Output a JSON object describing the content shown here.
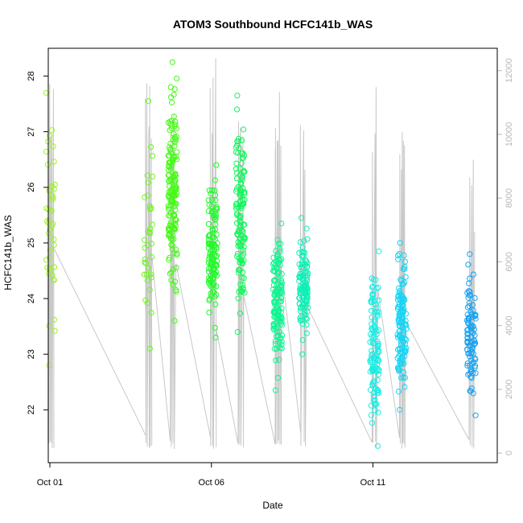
{
  "chart_data": {
    "type": "scatter",
    "title": "ATOM3 Southbound HCFC141b_WAS",
    "xlabel": "Date",
    "ylabel": "HCFC141b_WAS",
    "x_ticks": [
      "Oct 01",
      "Oct 06",
      "Oct 11"
    ],
    "x_tick_days": [
      1,
      6,
      11
    ],
    "xlim_days": [
      0.95,
      14.85
    ],
    "ylim": [
      21.05,
      28.5
    ],
    "y_ticks": [
      22,
      23,
      24,
      25,
      26,
      27,
      28
    ],
    "y2_ticks": [
      0,
      2000,
      4000,
      6000,
      8000,
      10000,
      12000
    ],
    "y2lim": [
      -300,
      12700
    ],
    "y2_series": "altitude (gray line)",
    "grid": false,
    "legend": "none",
    "colors": {
      "altitude_line": "#c8c8c8",
      "box": "#000000",
      "right_axis": "#b8b8b8"
    },
    "flights": [
      {
        "day": 1.02,
        "color": "#9cf02b",
        "range": [
          22.8,
          27.7
        ],
        "n": 45,
        "alt_max": 12000
      },
      {
        "day": 4.05,
        "color": "#6ff51f",
        "range": [
          23.1,
          27.55
        ],
        "n": 35,
        "alt_max": 12300
      },
      {
        "day": 4.8,
        "color": "#45fa15",
        "range": [
          23.6,
          28.25
        ],
        "n": 160,
        "alt_max": 12100
      },
      {
        "day": 6.05,
        "color": "#1ffa28",
        "range": [
          23.3,
          26.4
        ],
        "n": 120,
        "alt_max": 12400
      },
      {
        "day": 6.9,
        "color": "#10f75a",
        "range": [
          23.4,
          27.65
        ],
        "n": 130,
        "alt_max": 11600
      },
      {
        "day": 8.05,
        "color": "#0ef590",
        "range": [
          22.35,
          25.35
        ],
        "n": 130,
        "alt_max": 11800
      },
      {
        "day": 8.85,
        "color": "#10f0b5",
        "range": [
          23.0,
          25.45
        ],
        "n": 120,
        "alt_max": 10900
      },
      {
        "day": 11.05,
        "color": "#14eee5",
        "range": [
          21.35,
          24.85
        ],
        "n": 110,
        "alt_max": 11500
      },
      {
        "day": 11.9,
        "color": "#16d4f4",
        "range": [
          22.0,
          25.0
        ],
        "n": 130,
        "alt_max": 10600
      },
      {
        "day": 14.05,
        "color": "#1aa2f0",
        "range": [
          21.9,
          24.8
        ],
        "n": 100,
        "alt_max": 10400
      }
    ]
  }
}
